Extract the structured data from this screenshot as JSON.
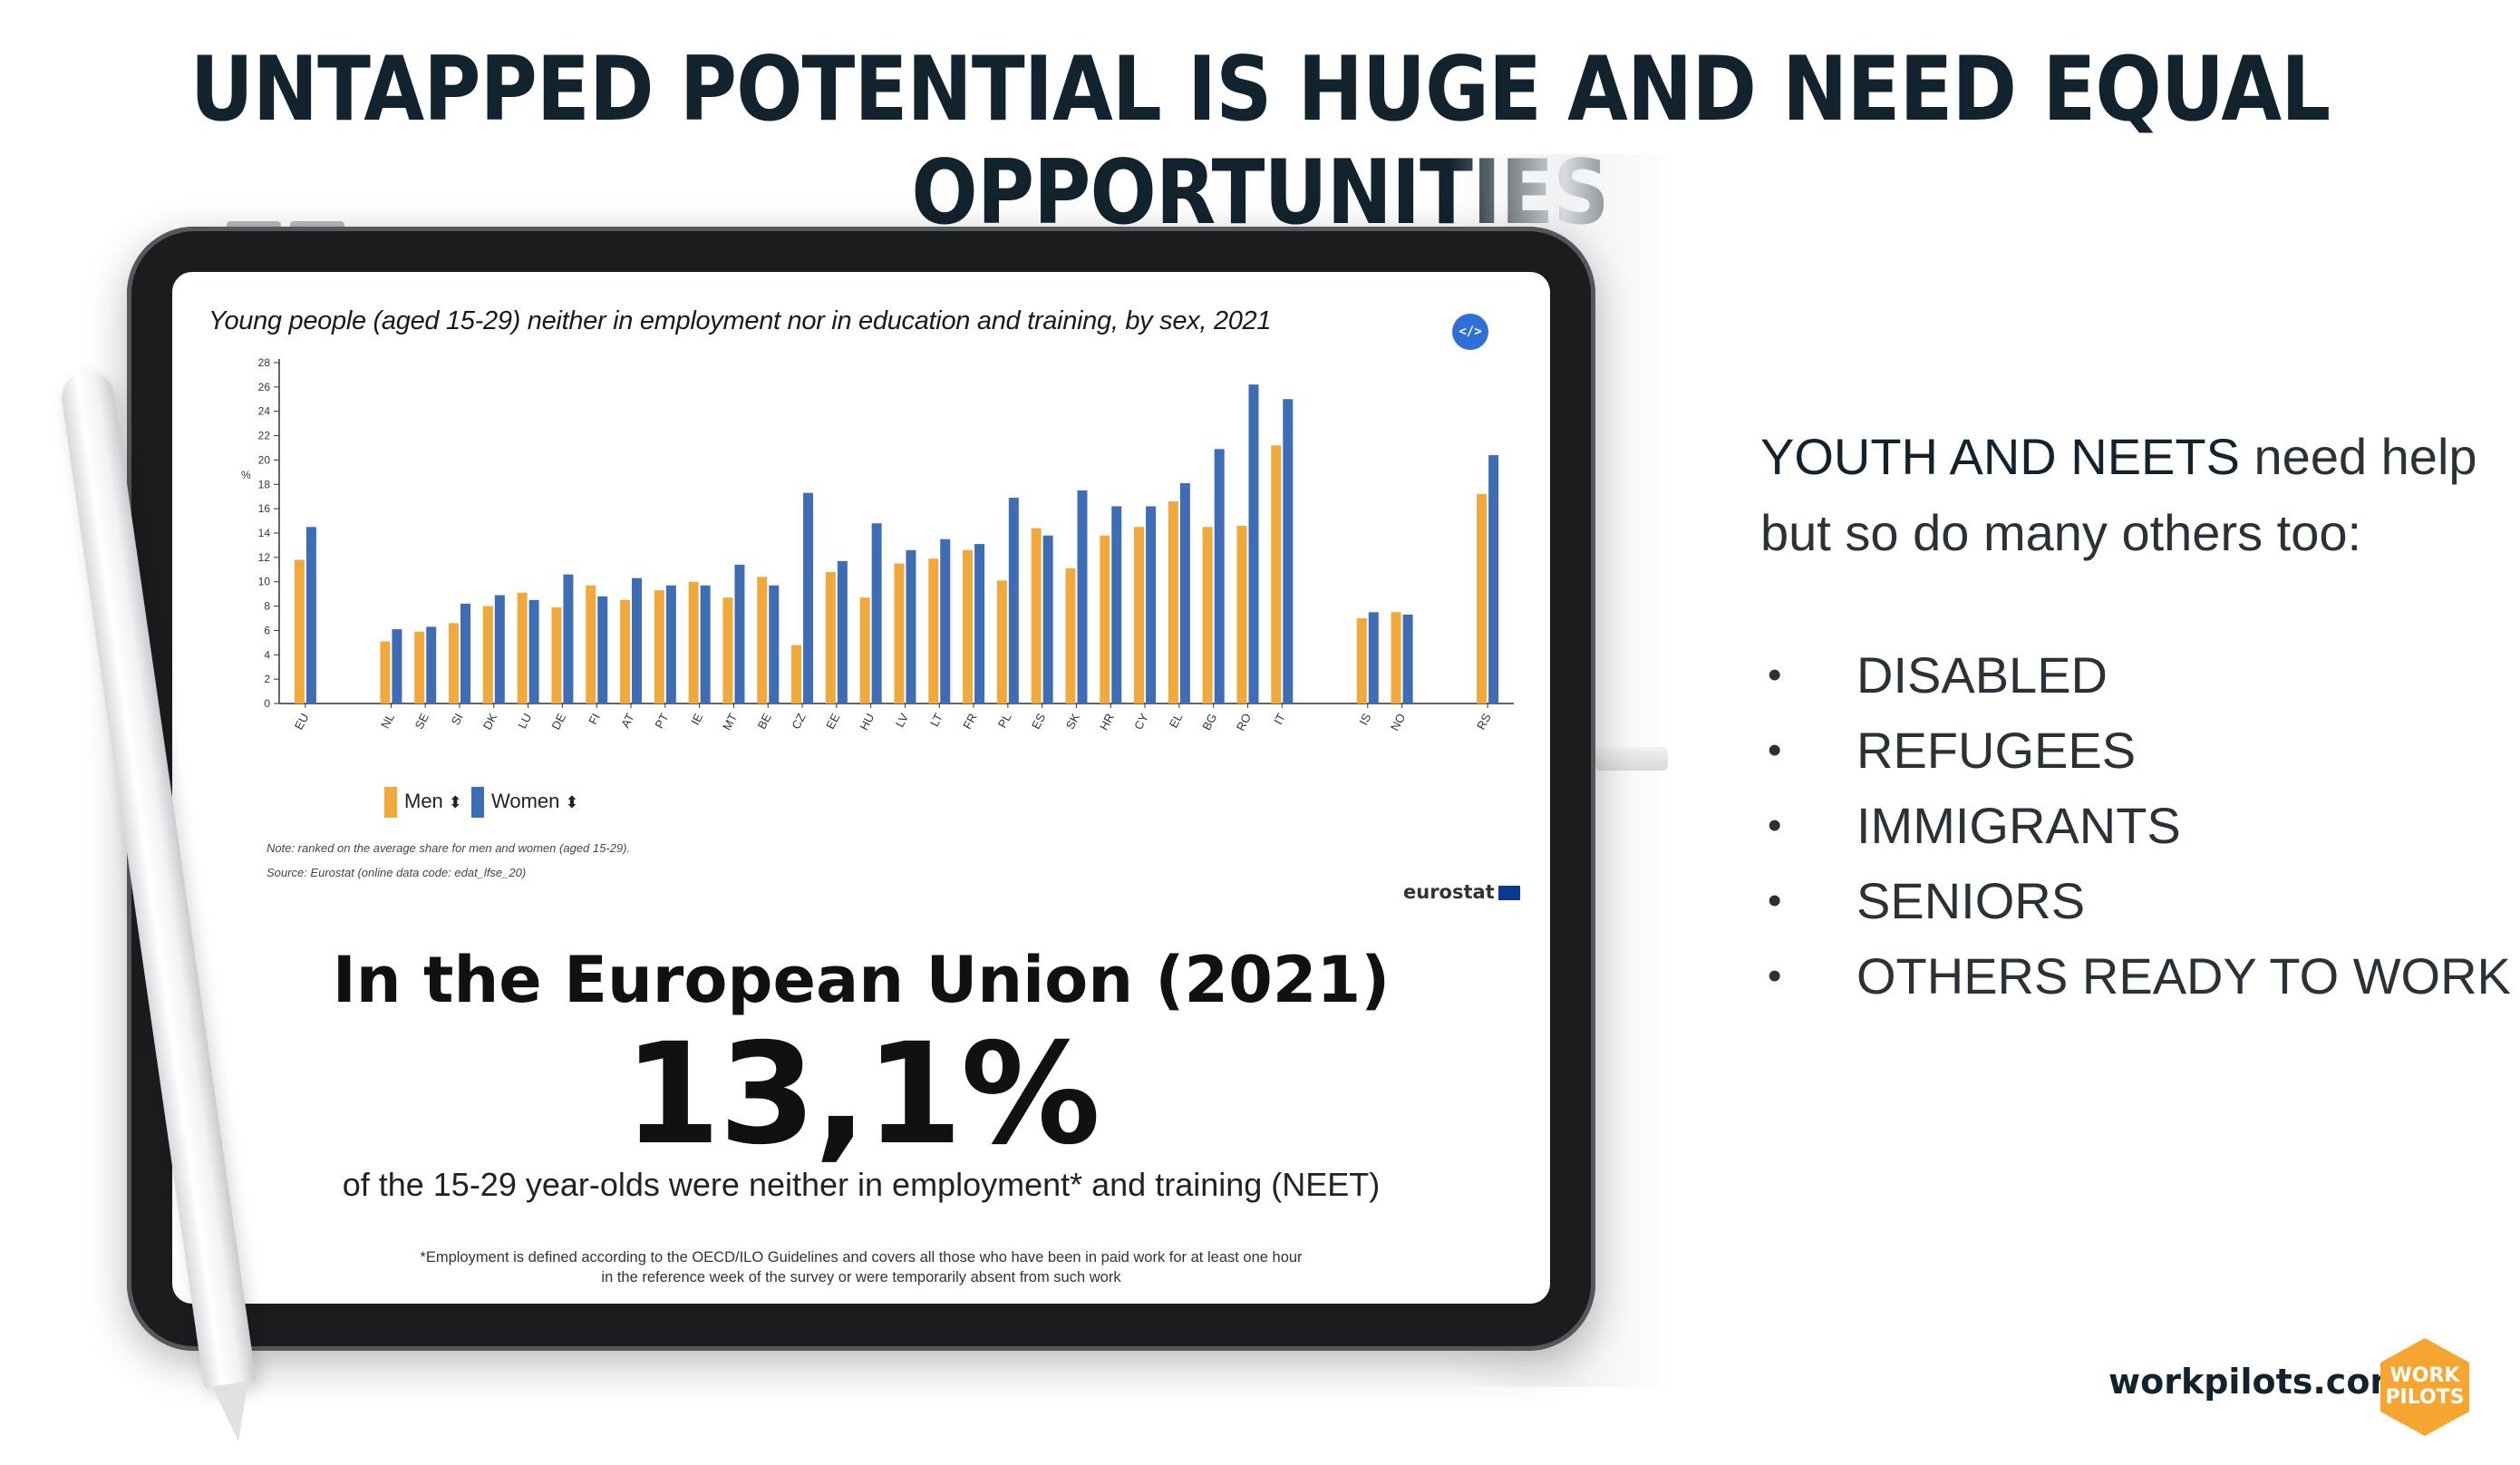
{
  "slide": {
    "title": "UNTAPPED POTENTIAL IS HUGE AND NEED EQUAL OPPORTUNITIES"
  },
  "chart_card": {
    "title": "Young people (aged 15-29) neither in employment nor in education and training, by sex, 2021",
    "embed_icon_text": "</>",
    "legend": [
      "Men",
      "Women"
    ],
    "legend_sort_glyph": "⬍",
    "note": "Note: ranked on the average share for men and women (aged 15-29).",
    "source": "Source: Eurostat (online data code: edat_lfse_20)",
    "logo_text": "eurostat"
  },
  "chart_data": {
    "type": "bar",
    "title": "Young people (aged 15-29) neither in employment nor in education and training, by sex, 2021",
    "xlabel": "",
    "ylabel": "%",
    "ylim": [
      0,
      28
    ],
    "yticks": [
      0,
      2,
      4,
      6,
      8,
      10,
      12,
      14,
      16,
      18,
      20,
      22,
      24,
      26,
      28
    ],
    "grid": false,
    "legend_position": "bottom-left",
    "colors": {
      "Men": "#f2a93b",
      "Women": "#3e6db5"
    },
    "categories": [
      "EU",
      "NL",
      "SE",
      "SI",
      "DK",
      "LU",
      "DE",
      "FI",
      "AT",
      "PT",
      "IE",
      "MT",
      "BE",
      "CZ",
      "EE",
      "HU",
      "LV",
      "LT",
      "FR",
      "PL",
      "ES",
      "SK",
      "HR",
      "CY",
      "EL",
      "BG",
      "RO",
      "IT",
      "IS",
      "NO",
      "RS"
    ],
    "groups": [
      [
        "EU"
      ],
      [
        "NL",
        "SE",
        "SI",
        "DK",
        "LU",
        "DE",
        "FI",
        "AT",
        "PT",
        "IE",
        "MT",
        "BE",
        "CZ",
        "EE",
        "HU",
        "LV",
        "LT",
        "FR",
        "PL",
        "ES",
        "SK",
        "HR",
        "CY",
        "EL",
        "BG",
        "RO",
        "IT"
      ],
      [
        "IS",
        "NO"
      ],
      [
        "RS"
      ]
    ],
    "series": [
      {
        "name": "Men",
        "values": [
          11.8,
          5.1,
          5.9,
          6.6,
          8.0,
          9.1,
          7.9,
          9.7,
          8.5,
          9.3,
          10.0,
          8.7,
          10.4,
          4.8,
          10.8,
          8.7,
          11.5,
          11.9,
          12.6,
          10.1,
          14.4,
          11.1,
          13.8,
          14.5,
          16.6,
          14.5,
          14.6,
          21.2,
          7.0,
          7.5,
          17.2
        ]
      },
      {
        "name": "Women",
        "values": [
          14.5,
          6.1,
          6.3,
          8.2,
          8.9,
          8.5,
          10.6,
          8.8,
          10.3,
          9.7,
          9.7,
          11.4,
          9.7,
          17.3,
          11.7,
          14.8,
          12.6,
          13.5,
          13.1,
          16.9,
          13.8,
          17.5,
          16.2,
          16.2,
          18.1,
          20.9,
          26.2,
          25.0,
          7.5,
          7.3,
          20.4
        ]
      }
    ]
  },
  "eu_summary": {
    "heading": "In the European Union (2021)",
    "stat": "13,1%",
    "caption": "of the 15-29 year-olds were neither in employment* and training (NEET)",
    "footnote_line1": "*Employment is defined according to the OECD/ILO Guidelines and covers all those who have been in paid work for at least one hour",
    "footnote_line2": "in the reference week of the survey or were temporarily absent from such work"
  },
  "side_panel": {
    "heading_highlight": "YOUTH AND NEETS",
    "heading_line1_rest": " need help",
    "heading_line2": "but so do many others too:",
    "bullet_glyph": "•",
    "items": [
      "DISABLED",
      "REFUGEES",
      "IMMIGRANTS",
      "SENIORS",
      "OTHERS READY TO WORK"
    ]
  },
  "brand": {
    "url": "workpilots.com",
    "logo_line1": "WORK",
    "logo_line2": "PILOTS",
    "logo_color": "#f6a530"
  }
}
